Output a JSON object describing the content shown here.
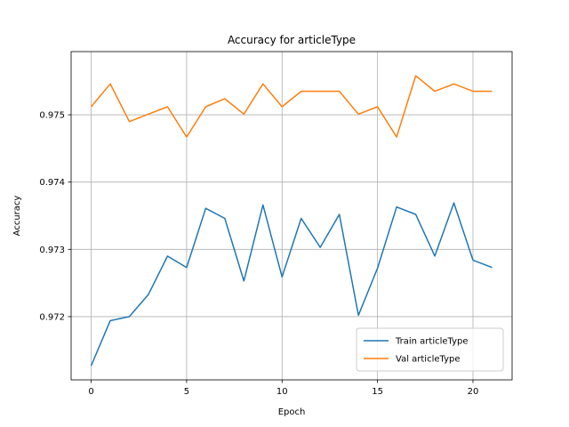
{
  "chart_data": {
    "type": "line",
    "title": "Accuracy for articleType",
    "xlabel": "Epoch",
    "ylabel": "Accuracy",
    "xlim": [
      -1.05,
      22.05
    ],
    "ylim": [
      0.97106,
      0.97594
    ],
    "xticks": [
      0,
      5,
      10,
      15,
      20
    ],
    "xtick_labels": [
      "0",
      "5",
      "10",
      "15",
      "20"
    ],
    "yticks": [
      0.972,
      0.973,
      0.974,
      0.975
    ],
    "ytick_labels": [
      "0.972",
      "0.973",
      "0.974",
      "0.975"
    ],
    "grid": true,
    "legend_position": "lower-right",
    "x": [
      0,
      1,
      2,
      3,
      4,
      5,
      6,
      7,
      8,
      9,
      10,
      11,
      12,
      13,
      14,
      15,
      16,
      17,
      18,
      19,
      20,
      21
    ],
    "series": [
      {
        "name": "Train articleType",
        "color": "#1f77b4",
        "values": [
          0.97127,
          0.97194,
          0.972,
          0.97233,
          0.9729,
          0.97273,
          0.97361,
          0.97346,
          0.97253,
          0.97366,
          0.97259,
          0.97346,
          0.97303,
          0.97352,
          0.97202,
          0.97272,
          0.97363,
          0.97352,
          0.9729,
          0.97369,
          0.97284,
          0.97273
        ]
      },
      {
        "name": "Val articleType",
        "color": "#ff7f0e",
        "values": [
          0.97512,
          0.97546,
          0.9749,
          0.97501,
          0.97512,
          0.97467,
          0.97512,
          0.97524,
          0.97501,
          0.97546,
          0.97512,
          0.97535,
          0.97535,
          0.97535,
          0.97501,
          0.97512,
          0.97467,
          0.97558,
          0.97535,
          0.97546,
          0.97535,
          0.97535
        ]
      }
    ]
  }
}
